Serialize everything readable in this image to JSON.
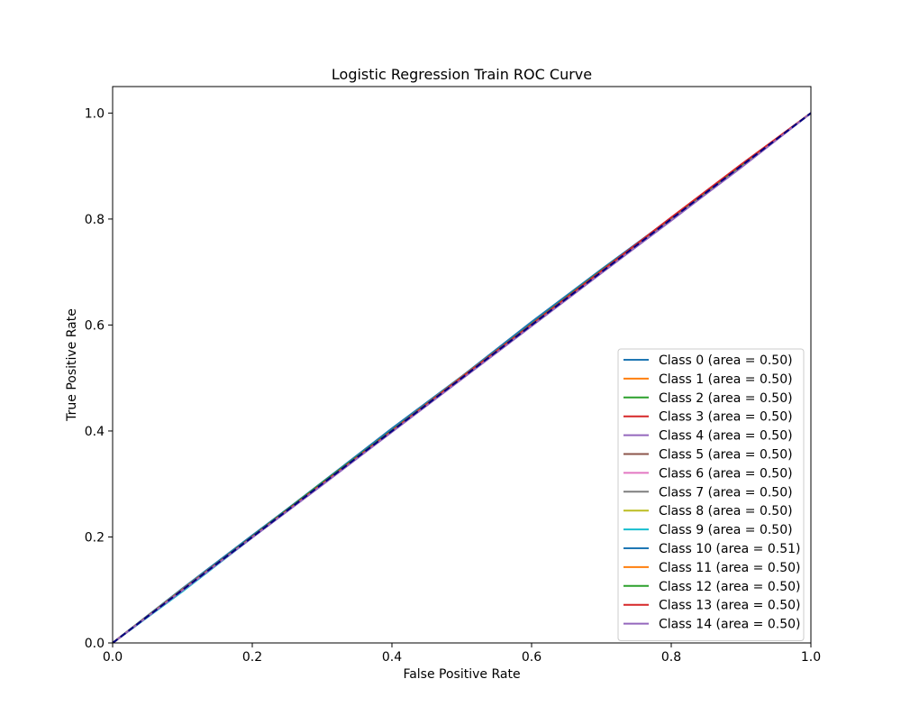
{
  "chart_data": {
    "type": "line",
    "title": "Logistic Regression Train ROC Curve",
    "xlabel": "False Positive Rate",
    "ylabel": "True Positive Rate",
    "xlim": [
      0.0,
      1.0
    ],
    "ylim": [
      0.0,
      1.05
    ],
    "xticks": [
      0.0,
      0.2,
      0.4,
      0.6,
      0.8,
      1.0
    ],
    "yticks": [
      0.0,
      0.2,
      0.4,
      0.6,
      0.8,
      1.0
    ],
    "xtick_labels": [
      "0.0",
      "0.2",
      "0.4",
      "0.6",
      "0.8",
      "1.0"
    ],
    "ytick_labels": [
      "0.0",
      "0.2",
      "0.4",
      "0.6",
      "0.8",
      "1.0"
    ],
    "grid": false,
    "legend_position": "bottom-right",
    "diagonal": {
      "x": [
        0,
        1
      ],
      "y": [
        0,
        1
      ],
      "color": "#000080",
      "style": "dashed"
    },
    "series": [
      {
        "name": "Class 0 (area = 0.50)",
        "color": "#1f77b4",
        "x": [
          0,
          0.1,
          0.2,
          0.3,
          0.4,
          0.5,
          0.6,
          0.7,
          0.8,
          0.9,
          1.0
        ],
        "y": [
          0,
          0.103,
          0.203,
          0.302,
          0.402,
          0.501,
          0.601,
          0.702,
          0.801,
          0.9,
          1.0
        ]
      },
      {
        "name": "Class 1 (area = 0.50)",
        "color": "#ff7f0e",
        "x": [
          0,
          0.1,
          0.2,
          0.3,
          0.4,
          0.5,
          0.6,
          0.7,
          0.8,
          0.9,
          1.0
        ],
        "y": [
          0,
          0.1,
          0.2,
          0.301,
          0.401,
          0.503,
          0.602,
          0.701,
          0.8,
          0.901,
          1.0
        ]
      },
      {
        "name": "Class 2 (area = 0.50)",
        "color": "#2ca02c",
        "x": [
          0,
          0.1,
          0.2,
          0.3,
          0.4,
          0.5,
          0.6,
          0.7,
          0.8,
          0.9,
          1.0
        ],
        "y": [
          0,
          0.101,
          0.201,
          0.303,
          0.402,
          0.501,
          0.6,
          0.703,
          0.801,
          0.9,
          1.0
        ]
      },
      {
        "name": "Class 3 (area = 0.50)",
        "color": "#d62728",
        "x": [
          0,
          0.1,
          0.2,
          0.3,
          0.4,
          0.5,
          0.6,
          0.7,
          0.8,
          0.9,
          1.0
        ],
        "y": [
          0,
          0.1,
          0.199,
          0.3,
          0.401,
          0.502,
          0.601,
          0.702,
          0.803,
          0.902,
          1.0
        ]
      },
      {
        "name": "Class 4 (area = 0.50)",
        "color": "#9467bd",
        "x": [
          0,
          0.1,
          0.2,
          0.3,
          0.4,
          0.5,
          0.6,
          0.7,
          0.8,
          0.9,
          1.0
        ],
        "y": [
          0,
          0.098,
          0.199,
          0.298,
          0.399,
          0.498,
          0.598,
          0.698,
          0.797,
          0.898,
          1.0
        ]
      },
      {
        "name": "Class 5 (area = 0.50)",
        "color": "#8c564b",
        "x": [
          0,
          0.1,
          0.2,
          0.3,
          0.4,
          0.5,
          0.6,
          0.7,
          0.8,
          0.9,
          1.0
        ],
        "y": [
          0,
          0.099,
          0.2,
          0.3,
          0.4,
          0.5,
          0.6,
          0.7,
          0.8,
          0.9,
          1.0
        ]
      },
      {
        "name": "Class 6 (area = 0.50)",
        "color": "#e377c2",
        "x": [
          0,
          0.1,
          0.2,
          0.3,
          0.4,
          0.5,
          0.6,
          0.7,
          0.8,
          0.9,
          1.0
        ],
        "y": [
          0,
          0.099,
          0.199,
          0.299,
          0.399,
          0.499,
          0.599,
          0.699,
          0.799,
          0.899,
          1.0
        ]
      },
      {
        "name": "Class 7 (area = 0.50)",
        "color": "#7f7f7f",
        "x": [
          0,
          0.1,
          0.2,
          0.3,
          0.4,
          0.5,
          0.6,
          0.7,
          0.8,
          0.9,
          1.0
        ],
        "y": [
          0,
          0.1,
          0.2,
          0.3,
          0.4,
          0.5,
          0.6,
          0.7,
          0.8,
          0.9,
          1.0
        ]
      },
      {
        "name": "Class 8 (area = 0.50)",
        "color": "#bcbd22",
        "x": [
          0,
          0.1,
          0.2,
          0.3,
          0.4,
          0.5,
          0.6,
          0.7,
          0.8,
          0.9,
          1.0
        ],
        "y": [
          0,
          0.102,
          0.201,
          0.3,
          0.4,
          0.5,
          0.6,
          0.7,
          0.8,
          0.9,
          1.0
        ]
      },
      {
        "name": "Class 9 (area = 0.50)",
        "color": "#17becf",
        "x": [
          0,
          0.1,
          0.2,
          0.3,
          0.4,
          0.5,
          0.6,
          0.7,
          0.8,
          0.9,
          1.0
        ],
        "y": [
          0,
          0.097,
          0.199,
          0.299,
          0.399,
          0.499,
          0.599,
          0.699,
          0.799,
          0.899,
          1.0
        ]
      },
      {
        "name": "Class 10 (area = 0.51)",
        "color": "#1f77b4",
        "x": [
          0,
          0.1,
          0.2,
          0.3,
          0.4,
          0.5,
          0.6,
          0.7,
          0.8,
          0.9,
          1.0
        ],
        "y": [
          0,
          0.102,
          0.202,
          0.303,
          0.405,
          0.503,
          0.606,
          0.705,
          0.802,
          0.901,
          1.0
        ]
      },
      {
        "name": "Class 11 (area = 0.50)",
        "color": "#ff7f0e",
        "x": [
          0,
          0.1,
          0.2,
          0.3,
          0.4,
          0.5,
          0.6,
          0.7,
          0.8,
          0.9,
          1.0
        ],
        "y": [
          0,
          0.101,
          0.2,
          0.301,
          0.401,
          0.502,
          0.601,
          0.701,
          0.801,
          0.901,
          1.0
        ]
      },
      {
        "name": "Class 12 (area = 0.50)",
        "color": "#2ca02c",
        "x": [
          0,
          0.1,
          0.2,
          0.3,
          0.4,
          0.5,
          0.6,
          0.7,
          0.8,
          0.9,
          1.0
        ],
        "y": [
          0,
          0.1,
          0.201,
          0.302,
          0.401,
          0.501,
          0.602,
          0.703,
          0.801,
          0.9,
          1.0
        ]
      },
      {
        "name": "Class 13 (area = 0.50)",
        "color": "#d62728",
        "x": [
          0,
          0.1,
          0.2,
          0.3,
          0.4,
          0.5,
          0.6,
          0.7,
          0.8,
          0.9,
          1.0
        ],
        "y": [
          0,
          0.1,
          0.2,
          0.3,
          0.4,
          0.501,
          0.601,
          0.702,
          0.803,
          0.903,
          1.0
        ]
      },
      {
        "name": "Class 14 (area = 0.50)",
        "color": "#9467bd",
        "x": [
          0,
          0.1,
          0.2,
          0.3,
          0.4,
          0.5,
          0.6,
          0.7,
          0.8,
          0.9,
          1.0
        ],
        "y": [
          0,
          0.099,
          0.199,
          0.298,
          0.398,
          0.498,
          0.598,
          0.698,
          0.798,
          0.897,
          1.0
        ]
      }
    ]
  }
}
